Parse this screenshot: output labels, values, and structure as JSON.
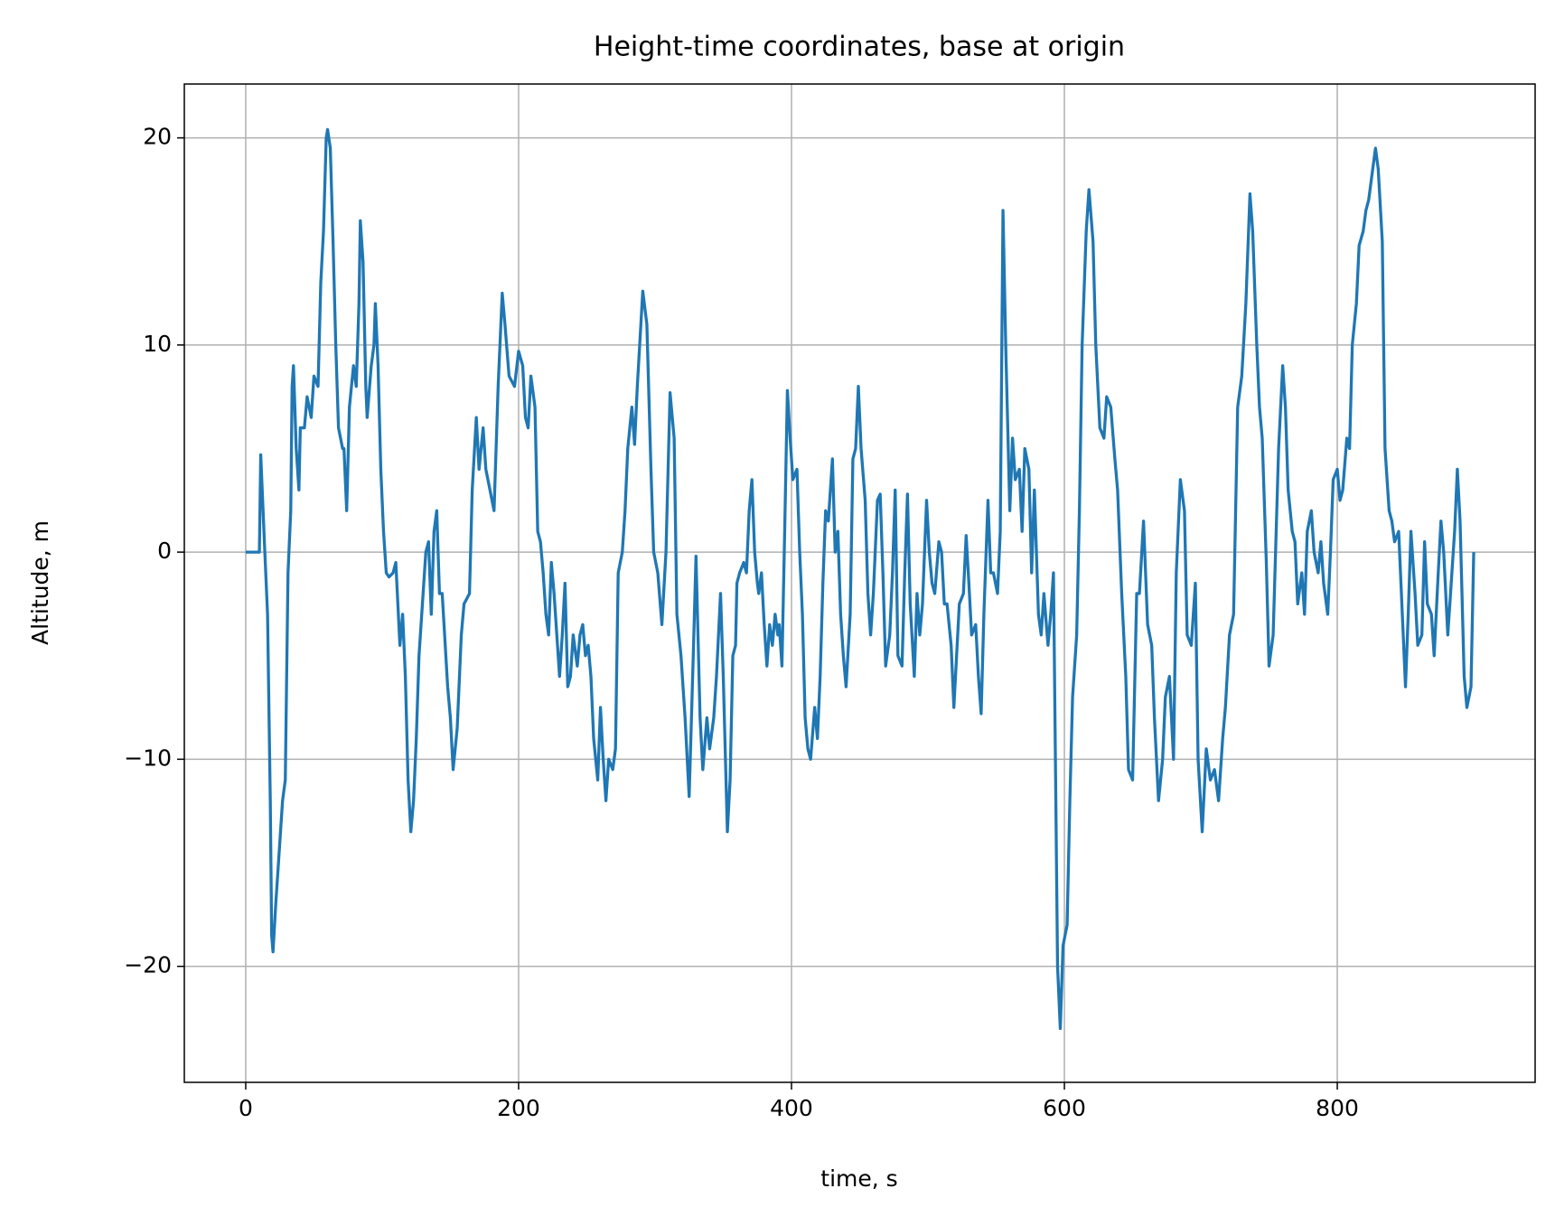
{
  "chart_data": {
    "type": "line",
    "title": "Height-time coordinates, base at origin",
    "x_label": "time, s",
    "y_label": "Altitude, m",
    "xlim": [
      -45,
      945
    ],
    "ylim": [
      -25.6,
      22.6
    ],
    "xticks": [
      0,
      200,
      400,
      600,
      800
    ],
    "yticks": [
      {
        "value": -20,
        "label": "−20"
      },
      {
        "value": -10,
        "label": "−10"
      },
      0,
      10,
      20
    ],
    "grid": true,
    "series": [
      {
        "color": "#1f77b4",
        "x": [
          0,
          5,
          10,
          11,
          14,
          16,
          18,
          19,
          20,
          22,
          24,
          27,
          29,
          31,
          33,
          34,
          35,
          37,
          39,
          40,
          43,
          45,
          48,
          50,
          53,
          55,
          57,
          59,
          60,
          62,
          64,
          66,
          68,
          71,
          72,
          74,
          76,
          79,
          81,
          83,
          84,
          86,
          88,
          89,
          92,
          94,
          95,
          97,
          99,
          101,
          103,
          105,
          108,
          110,
          113,
          115,
          117,
          119,
          121,
          123,
          125,
          127,
          130,
          132,
          134,
          136,
          138,
          140,
          142,
          144,
          148,
          150,
          152,
          155,
          158,
          160,
          164,
          166,
          169,
          171,
          174,
          176,
          179,
          182,
          185,
          188,
          190,
          193,
          197,
          200,
          203,
          205,
          207,
          209,
          212,
          214,
          216,
          218,
          220,
          222,
          224,
          226,
          230,
          232,
          234,
          236,
          238,
          240,
          243,
          245,
          247,
          249,
          251,
          253,
          255,
          258,
          260,
          262,
          264,
          266,
          269,
          271,
          273,
          276,
          278,
          280,
          283,
          285,
          287,
          291,
          294,
          297,
          299,
          302,
          305,
          308,
          311,
          314,
          316,
          319,
          322,
          325,
          328,
          330,
          333,
          335,
          338,
          340,
          343,
          345,
          348,
          350,
          353,
          355,
          357,
          359,
          360,
          362,
          365,
          367,
          369,
          371,
          373,
          375,
          376,
          378,
          380,
          382,
          384,
          386,
          388,
          390,
          391,
          393,
          395,
          397,
          399,
          401,
          404,
          406,
          408,
          410,
          412,
          414,
          417,
          419,
          421,
          423,
          425,
          427,
          430,
          432,
          434,
          436,
          438,
          440,
          443,
          445,
          447,
          449,
          451,
          454,
          456,
          458,
          460,
          463,
          465,
          467,
          469,
          472,
          474,
          476,
          478,
          481,
          483,
          485,
          487,
          490,
          492,
          494,
          496,
          499,
          501,
          503,
          505,
          508,
          510,
          512,
          514,
          517,
          519,
          521,
          523,
          526,
          528,
          530,
          532,
          535,
          537,
          539,
          541,
          544,
          546,
          548,
          551,
          553,
          555,
          557,
          560,
          562,
          564,
          567,
          569,
          571,
          574,
          576,
          578,
          581,
          583,
          585,
          588,
          590,
          592,
          595,
          597,
          599,
          602,
          604,
          606,
          609,
          611,
          613,
          616,
          618,
          621,
          623,
          626,
          629,
          631,
          634,
          637,
          639,
          642,
          645,
          647,
          650,
          653,
          655,
          658,
          661,
          664,
          666,
          669,
          672,
          674,
          677,
          680,
          682,
          685,
          688,
          690,
          693,
          696,
          698,
          701,
          704,
          707,
          710,
          713,
          716,
          718,
          721,
          724,
          727,
          730,
          733,
          736,
          738,
          741,
          743,
          745,
          748,
          750,
          753,
          755,
          757,
          760,
          762,
          764,
          767,
          769,
          771,
          774,
          776,
          778,
          781,
          783,
          786,
          788,
          790,
          793,
          795,
          797,
          800,
          802,
          804,
          807,
          809,
          811,
          814,
          816,
          819,
          821,
          823,
          826,
          828,
          830,
          833,
          835,
          838,
          840,
          842,
          845,
          847,
          850,
          852,
          854,
          857,
          859,
          862,
          864,
          866,
          869,
          871,
          874,
          876,
          878,
          881,
          883,
          886,
          888,
          890,
          893,
          895,
          898,
          900
        ],
        "values": [
          0,
          0,
          0,
          4.7,
          0,
          -3,
          -12,
          -18.5,
          -19.3,
          -17,
          -15,
          -12,
          -11,
          -1,
          2,
          8,
          9,
          5,
          3,
          6,
          6,
          7.5,
          6.5,
          8.5,
          8,
          13,
          15.5,
          20,
          20.4,
          19.5,
          15,
          10,
          6,
          5,
          5,
          2,
          7,
          9,
          8,
          12,
          16,
          14,
          8,
          6.5,
          9,
          10,
          12,
          9,
          4,
          1,
          -1,
          -1.2,
          -1,
          -0.5,
          -4.5,
          -3,
          -6,
          -11,
          -13.5,
          -12,
          -9,
          -5,
          -2,
          0,
          0.5,
          -3,
          1,
          2,
          -2,
          -2,
          -6.5,
          -8,
          -10.5,
          -8.5,
          -4,
          -2.5,
          -2,
          3,
          6.5,
          4,
          6,
          4,
          3,
          2,
          8,
          12.5,
          11,
          8.5,
          8,
          9.7,
          9,
          6.5,
          6,
          8.5,
          7,
          1,
          0.5,
          -1,
          -3,
          -4,
          -0.5,
          -2,
          -6,
          -4,
          -1.5,
          -6.5,
          -6,
          -4,
          -5.5,
          -4,
          -3.5,
          -5,
          -4.5,
          -6,
          -9,
          -11,
          -7.5,
          -10,
          -12,
          -10,
          -10.5,
          -9.5,
          -1,
          0,
          2,
          5,
          7,
          5.2,
          8,
          12.6,
          11,
          4,
          0,
          -1,
          -3.5,
          0,
          7.7,
          5.5,
          -3,
          -5,
          -8,
          -11.8,
          -5,
          -0.2,
          -8,
          -10.5,
          -8,
          -9.5,
          -8,
          -6,
          -2,
          -6,
          -13.5,
          -11,
          -5,
          -4.5,
          -1.5,
          -1,
          -0.5,
          -1,
          2,
          3.5,
          0,
          -1.5,
          -2,
          -1,
          -3.5,
          -5.5,
          -3.5,
          -4.5,
          -3,
          -4,
          -3.5,
          -5.5,
          1,
          7.8,
          5.5,
          3.5,
          4,
          0,
          -3,
          -8,
          -9.5,
          -10,
          -7.5,
          -9,
          -6,
          -1.5,
          2,
          1.5,
          4.5,
          0,
          1,
          -3,
          -5,
          -6.5,
          -3,
          4.5,
          5,
          8,
          5,
          2.5,
          -2,
          -4,
          -2,
          2.5,
          2.8,
          -1,
          -5.5,
          -4,
          -1,
          3,
          -5,
          -5.5,
          -1,
          2.8,
          -2.5,
          -6,
          -2,
          -4,
          -2.5,
          2.5,
          0,
          -1.5,
          -2,
          0.5,
          0,
          -2.5,
          -2.5,
          -4.5,
          -7.5,
          -5,
          -2.5,
          -2,
          0.8,
          -1.5,
          -4,
          -3.5,
          -6,
          -7.8,
          -3,
          2.5,
          -1,
          -1,
          -2,
          1,
          16.5,
          10,
          2,
          5.5,
          3.5,
          4,
          1,
          5,
          4,
          -1,
          3,
          -3,
          -4,
          -2,
          -4.5,
          -3,
          -1,
          -20,
          -23,
          -19,
          -18,
          -12,
          -7,
          -4,
          2,
          10,
          15.5,
          17.5,
          15,
          10,
          6,
          5.5,
          7.5,
          7,
          4.5,
          3,
          -2,
          -6,
          -10.5,
          -11,
          -2,
          -2,
          1.5,
          -3.5,
          -4.5,
          -8,
          -12,
          -10,
          -7,
          -6,
          -10,
          -1,
          3.5,
          2,
          -4,
          -4.5,
          -1.5,
          -10,
          -13.5,
          -9.5,
          -11,
          -10.5,
          -12,
          -9,
          -7.5,
          -4,
          -3,
          7,
          8.5,
          12,
          17.3,
          15.5,
          10,
          7,
          5.5,
          -0.5,
          -5.5,
          -4,
          0.5,
          5,
          9,
          7,
          3,
          1,
          0.5,
          -2.5,
          -1,
          -3,
          1,
          2,
          0,
          -1,
          0.5,
          -1.5,
          -3,
          0,
          3.5,
          4,
          2.5,
          3,
          5.5,
          5,
          10,
          12,
          14.8,
          15.5,
          16.5,
          17,
          18.5,
          19.5,
          18.5,
          15,
          5,
          2,
          1.5,
          0.5,
          1,
          -2,
          -6.5,
          -3,
          1,
          -2,
          -4.5,
          -4,
          0.5,
          -2.5,
          -3,
          -5,
          -1,
          1.5,
          0,
          -4,
          -2,
          1,
          4,
          1.5,
          -6,
          -7.5,
          -6.5,
          0
        ]
      }
    ]
  }
}
